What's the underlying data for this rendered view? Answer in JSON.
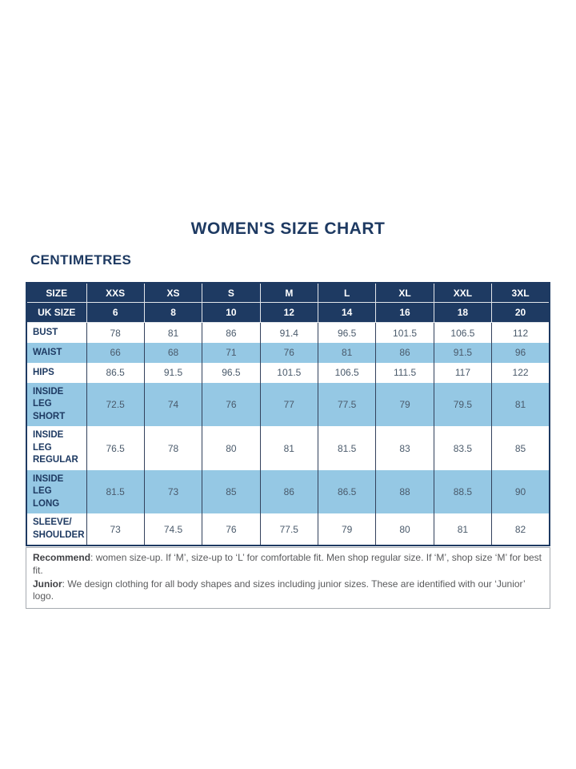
{
  "page": {
    "title": "WOMEN'S SIZE CHART",
    "units_label": "CENTIMETRES"
  },
  "table": {
    "header_rows": [
      {
        "label": "SIZE",
        "values": [
          "XXS",
          "XS",
          "S",
          "M",
          "L",
          "XL",
          "XXL",
          "3XL"
        ]
      },
      {
        "label": "UK SIZE",
        "values": [
          "6",
          "8",
          "10",
          "12",
          "14",
          "16",
          "18",
          "20"
        ]
      }
    ],
    "rows": [
      {
        "label": "BUST",
        "highlight": false,
        "values": [
          "78",
          "81",
          "86",
          "91.4",
          "96.5",
          "101.5",
          "106.5",
          "112"
        ]
      },
      {
        "label": "WAIST",
        "highlight": true,
        "values": [
          "66",
          "68",
          "71",
          "76",
          "81",
          "86",
          "91.5",
          "96"
        ]
      },
      {
        "label": "HIPS",
        "highlight": false,
        "values": [
          "86.5",
          "91.5",
          "96.5",
          "101.5",
          "106.5",
          "111.5",
          "117",
          "122"
        ]
      },
      {
        "label": "INSIDE LEG\nSHORT",
        "highlight": true,
        "values": [
          "72.5",
          "74",
          "76",
          "77",
          "77.5",
          "79",
          "79.5",
          "81"
        ]
      },
      {
        "label": "INSIDE LEG\nREGULAR",
        "highlight": false,
        "values": [
          "76.5",
          "78",
          "80",
          "81",
          "81.5",
          "83",
          "83.5",
          "85"
        ]
      },
      {
        "label": "INSIDE LEG\nLONG",
        "highlight": true,
        "values": [
          "81.5",
          "73",
          "85",
          "86",
          "86.5",
          "88",
          "88.5",
          "90"
        ]
      },
      {
        "label": "SLEEVE/\nSHOULDER",
        "highlight": false,
        "values": [
          "73",
          "74.5",
          "76",
          "77.5",
          "79",
          "80",
          "81",
          "82"
        ]
      }
    ]
  },
  "footnote": {
    "recommend_label": "Recommend",
    "recommend_text": ": women size-up. If ‘M’, size-up to ‘L’ for comfortable fit. Men shop regular size. If ‘M’, shop size ‘M’ for best fit.",
    "junior_label": "Junior",
    "junior_text": ": We design clothing for all body shapes and sizes including junior sizes. These are identified with our ‘Junior’ logo."
  },
  "colors": {
    "navy": "#1e3a62",
    "row_highlight": "#95c8e4",
    "cell_text": "#4a5a6b"
  }
}
